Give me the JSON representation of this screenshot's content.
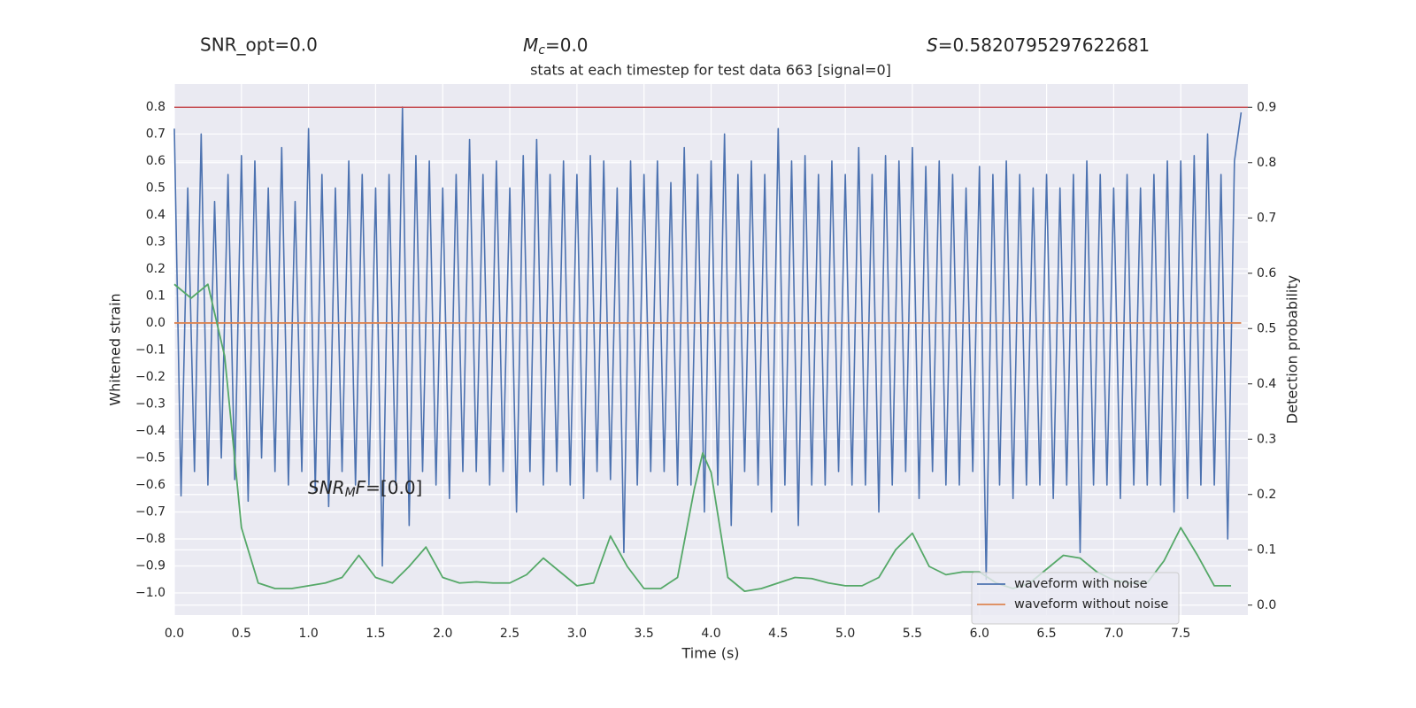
{
  "chart_data": {
    "type": "line",
    "title": "stats at each timestep for test data 663 [signal=0]",
    "snr_opt": "SNR_opt=0.0",
    "chirp_mass": {
      "symbol": "M",
      "sub": "c",
      "rest": "=0.0"
    },
    "score": {
      "symbol": "S",
      "rest": "=0.5820795297622681"
    },
    "snr_mf": {
      "symbol": "SNR",
      "sub": "M",
      "tail": "F",
      "rest": "=[0.0]"
    },
    "xlabel": "Time (s)",
    "ylabel": "Whitened strain",
    "y2label": "Detection probability",
    "xlim": [
      0,
      8.0
    ],
    "ylim": [
      -1.082,
      0.885
    ],
    "y2lim": [
      -0.018,
      0.942
    ],
    "xticks": [
      {
        "value": 0,
        "label": "0.0"
      },
      0.5,
      {
        "value": 1,
        "label": "1.0"
      },
      1.5,
      {
        "value": 2,
        "label": "2.0"
      },
      2.5,
      {
        "value": 3,
        "label": "3.0"
      },
      3.5,
      {
        "value": 4,
        "label": "4.0"
      },
      4.5,
      {
        "value": 5,
        "label": "5.0"
      },
      5.5,
      {
        "value": 6,
        "label": "6.0"
      },
      6.5,
      {
        "value": 7,
        "label": "7.0"
      },
      7.5
    ],
    "yticks": [
      {
        "value": -1,
        "label": "−1.0"
      },
      {
        "value": -0.9,
        "label": "−0.9"
      },
      {
        "value": -0.8,
        "label": "−0.8"
      },
      {
        "value": -0.7,
        "label": "−0.7"
      },
      {
        "value": -0.6,
        "label": "−0.6"
      },
      {
        "value": -0.5,
        "label": "−0.5"
      },
      {
        "value": -0.4,
        "label": "−0.4"
      },
      {
        "value": -0.3,
        "label": "−0.3"
      },
      {
        "value": -0.2,
        "label": "−0.2"
      },
      {
        "value": -0.1,
        "label": "−0.1"
      },
      {
        "value": 0,
        "label": "0.0"
      },
      0.1,
      0.2,
      0.3,
      0.4,
      0.5,
      0.6,
      0.7,
      0.8
    ],
    "y2ticks": [
      {
        "value": 0,
        "label": "0.0"
      },
      0.1,
      0.2,
      0.3,
      0.4,
      0.5,
      0.6,
      0.7,
      0.8,
      0.9
    ],
    "grid": true,
    "legend": "lower right",
    "threshold": {
      "value": 0.9,
      "axis": "y2",
      "color": "#c44e52"
    },
    "series": [
      {
        "name": "waveform with noise",
        "color": "#4c72b0",
        "x": [
          0,
          0.05,
          0.1,
          0.15,
          0.2,
          0.25,
          0.3,
          0.35,
          0.4,
          0.45,
          0.5,
          0.55,
          0.6,
          0.65,
          0.7,
          0.75,
          0.8,
          0.85,
          0.9,
          0.95,
          1,
          1.05,
          1.1,
          1.15,
          1.2,
          1.25,
          1.3,
          1.35,
          1.4,
          1.45,
          1.5,
          1.55,
          1.6,
          1.65,
          1.7,
          1.75,
          1.8,
          1.85,
          1.9,
          1.95,
          2,
          2.05,
          2.1,
          2.15,
          2.2,
          2.25,
          2.3,
          2.35,
          2.4,
          2.45,
          2.5,
          2.55,
          2.6,
          2.65,
          2.7,
          2.75,
          2.8,
          2.85,
          2.9,
          2.95,
          3,
          3.05,
          3.1,
          3.15,
          3.2,
          3.25,
          3.3,
          3.35,
          3.4,
          3.45,
          3.5,
          3.55,
          3.6,
          3.65,
          3.7,
          3.75,
          3.8,
          3.85,
          3.9,
          3.95,
          4,
          4.05,
          4.1,
          4.15,
          4.2,
          4.25,
          4.3,
          4.35,
          4.4,
          4.45,
          4.5,
          4.55,
          4.6,
          4.65,
          4.7,
          4.75,
          4.8,
          4.85,
          4.9,
          4.95,
          5,
          5.05,
          5.1,
          5.15,
          5.2,
          5.25,
          5.3,
          5.35,
          5.4,
          5.45,
          5.5,
          5.55,
          5.6,
          5.65,
          5.7,
          5.75,
          5.8,
          5.85,
          5.9,
          5.95,
          6,
          6.05,
          6.1,
          6.15,
          6.2,
          6.25,
          6.3,
          6.35,
          6.4,
          6.45,
          6.5,
          6.55,
          6.6,
          6.65,
          6.7,
          6.75,
          6.8,
          6.85,
          6.9,
          6.95,
          7,
          7.05,
          7.1,
          7.15,
          7.2,
          7.25,
          7.3,
          7.35,
          7.4,
          7.45,
          7.5,
          7.55,
          7.6,
          7.65,
          7.7,
          7.75,
          7.8,
          7.85,
          7.9,
          7.95
        ],
        "values": [
          0.72,
          -0.64,
          0.5,
          -0.55,
          0.7,
          -0.6,
          0.45,
          -0.5,
          0.55,
          -0.58,
          0.62,
          -0.66,
          0.6,
          -0.5,
          0.5,
          -0.55,
          0.65,
          -0.6,
          0.45,
          -0.55,
          0.72,
          -0.62,
          0.55,
          -0.68,
          0.5,
          -0.55,
          0.6,
          -0.6,
          0.55,
          -0.6,
          0.5,
          -0.9,
          0.55,
          -0.6,
          0.8,
          -0.75,
          0.62,
          -0.55,
          0.6,
          -0.6,
          0.5,
          -0.65,
          0.55,
          -0.55,
          0.68,
          -0.55,
          0.55,
          -0.6,
          0.6,
          -0.55,
          0.5,
          -0.7,
          0.62,
          -0.55,
          0.68,
          -0.6,
          0.55,
          -0.55,
          0.6,
          -0.6,
          0.55,
          -0.65,
          0.62,
          -0.55,
          0.6,
          -0.58,
          0.5,
          -0.85,
          0.6,
          -0.6,
          0.55,
          -0.55,
          0.6,
          -0.55,
          0.52,
          -0.6,
          0.65,
          -0.6,
          0.55,
          -0.7,
          0.6,
          -0.6,
          0.7,
          -0.75,
          0.55,
          -0.55,
          0.6,
          -0.6,
          0.55,
          -0.7,
          0.72,
          -0.6,
          0.6,
          -0.75,
          0.62,
          -0.6,
          0.55,
          -0.6,
          0.6,
          -0.55,
          0.55,
          -0.6,
          0.65,
          -0.6,
          0.55,
          -0.7,
          0.62,
          -0.6,
          0.6,
          -0.55,
          0.65,
          -0.65,
          0.58,
          -0.55,
          0.6,
          -0.6,
          0.55,
          -0.6,
          0.5,
          -0.55,
          0.58,
          -0.95,
          0.55,
          -0.6,
          0.6,
          -0.65,
          0.55,
          -0.6,
          0.5,
          -0.6,
          0.55,
          -0.65,
          0.5,
          -0.6,
          0.55,
          -0.85,
          0.6,
          -0.6,
          0.55,
          -0.6,
          0.5,
          -0.65,
          0.55,
          -0.6,
          0.5,
          -0.6,
          0.55,
          -0.6,
          0.6,
          -0.7,
          0.6,
          -0.65,
          0.62,
          -0.6,
          0.7,
          -0.6,
          0.55,
          -0.8,
          0.6,
          0.78
        ]
      },
      {
        "name": "waveform without noise",
        "color": "#dd8452",
        "x": [
          0,
          7.95
        ],
        "values": [
          0,
          0
        ]
      },
      {
        "color": "#55a868",
        "axis": "y2",
        "x": [
          0,
          0.125,
          0.25,
          0.375,
          0.5,
          0.625,
          0.75,
          0.875,
          1,
          1.125,
          1.25,
          1.375,
          1.5,
          1.625,
          1.75,
          1.875,
          2,
          2.125,
          2.25,
          2.375,
          2.5,
          2.625,
          2.75,
          2.875,
          3,
          3.125,
          3.25,
          3.375,
          3.5,
          3.625,
          3.75,
          3.875,
          3.9375,
          4,
          4.125,
          4.25,
          4.375,
          4.5,
          4.625,
          4.75,
          4.875,
          5,
          5.125,
          5.25,
          5.375,
          5.5,
          5.625,
          5.75,
          5.875,
          6,
          6.125,
          6.25,
          6.375,
          6.5,
          6.625,
          6.75,
          6.875,
          7,
          7.125,
          7.25,
          7.375,
          7.5,
          7.625,
          7.75,
          7.875
        ],
        "values": [
          0.58,
          0.555,
          0.58,
          0.45,
          0.14,
          0.04,
          0.03,
          0.03,
          0.035,
          0.04,
          0.05,
          0.09,
          0.05,
          0.04,
          0.07,
          0.105,
          0.05,
          0.04,
          0.042,
          0.04,
          0.04,
          0.055,
          0.085,
          0.06,
          0.035,
          0.04,
          0.125,
          0.07,
          0.03,
          0.03,
          0.05,
          0.21,
          0.275,
          0.24,
          0.05,
          0.025,
          0.03,
          0.04,
          0.05,
          0.048,
          0.04,
          0.035,
          0.035,
          0.05,
          0.1,
          0.13,
          0.07,
          0.055,
          0.06,
          0.06,
          0.04,
          0.03,
          0.04,
          0.065,
          0.09,
          0.085,
          0.06,
          0.045,
          0.04,
          0.04,
          0.08,
          0.14,
          0.09,
          0.035,
          0.035
        ]
      }
    ]
  }
}
